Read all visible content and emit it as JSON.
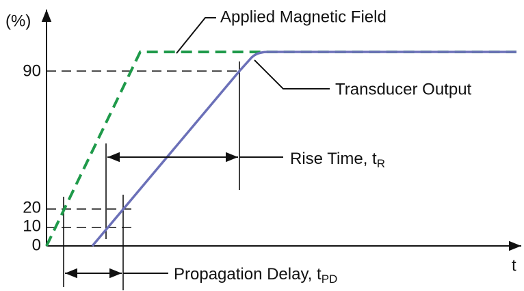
{
  "y_axis": {
    "label": "(%)",
    "ticks": [
      "90",
      "20",
      "10",
      "0"
    ]
  },
  "x_axis": {
    "label": "t"
  },
  "annotations": {
    "applied_field": "Applied Magnetic Field",
    "transducer_output": "Transducer Output",
    "rise_time": {
      "text": "Rise Time, t",
      "subscript": "R"
    },
    "propagation_delay": {
      "text": "Propagation Delay, t",
      "subscript": "PD"
    }
  }
}
